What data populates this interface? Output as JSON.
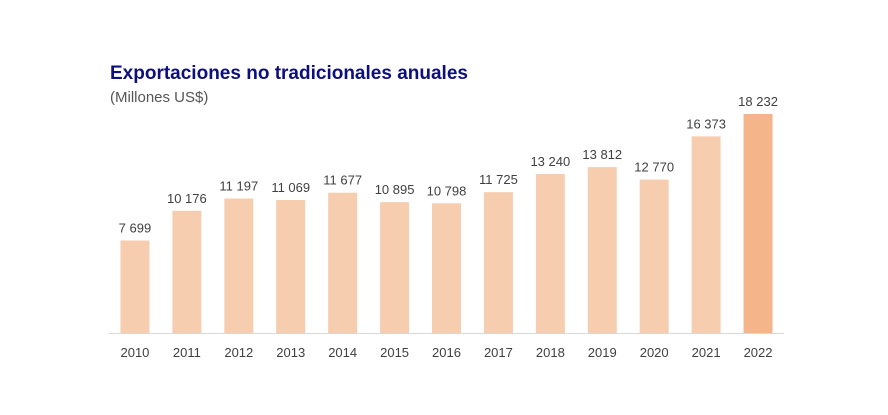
{
  "chart_data": {
    "type": "bar",
    "title": "Exportaciones no tradicionales anuales",
    "subtitle": "(Millones US$)",
    "categories": [
      "2010",
      "2011",
      "2012",
      "2013",
      "2014",
      "2015",
      "2016",
      "2017",
      "2018",
      "2019",
      "2020",
      "2021",
      "2022"
    ],
    "values": [
      7699,
      10176,
      11197,
      11069,
      11677,
      10895,
      10798,
      11725,
      13240,
      13812,
      12770,
      16373,
      18232
    ],
    "value_labels": [
      "7 699",
      "10 176",
      "11 197",
      "11 069",
      "11 677",
      "10 895",
      "10 798",
      "11 725",
      "13 240",
      "13 812",
      "12 770",
      "16 373",
      "18 232"
    ],
    "xlabel": "",
    "ylabel": "",
    "ylim": [
      0,
      18232
    ],
    "grid": false,
    "legend": "none",
    "colors": {
      "bar": "#f7cdb0",
      "bar_highlight": "#f4b58a",
      "title": "#0d0f7a",
      "subtitle": "#555555",
      "labels": "#404040",
      "axis": "#d9d9d9"
    },
    "highlight_index": 12
  }
}
